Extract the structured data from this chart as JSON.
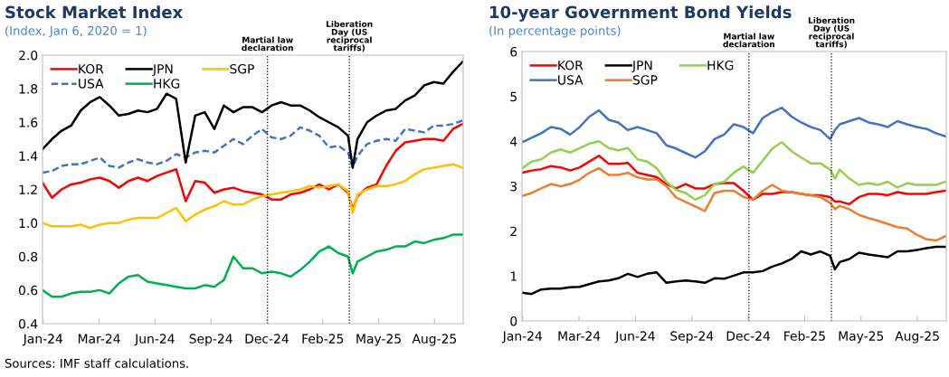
{
  "chart_data": [
    {
      "type": "line",
      "title": "Stock Market Index",
      "subtitle": "(Index, Jan 6, 2020 = 1)",
      "x": [
        "2024-01-08",
        "2024-01-22",
        "2024-02-05",
        "2024-02-19",
        "2024-03-04",
        "2024-03-18",
        "2024-04-01",
        "2024-04-15",
        "2024-04-29",
        "2024-05-13",
        "2024-05-27",
        "2024-06-10",
        "2024-06-24",
        "2024-07-08",
        "2024-07-22",
        "2024-08-05",
        "2024-08-19",
        "2024-09-02",
        "2024-09-16",
        "2024-09-30",
        "2024-10-14",
        "2024-10-28",
        "2024-11-11",
        "2024-11-25",
        "2024-12-09",
        "2024-12-23",
        "2025-01-06",
        "2025-01-20",
        "2025-02-03",
        "2025-02-17",
        "2025-03-03",
        "2025-03-17",
        "2025-03-31",
        "2025-04-07",
        "2025-04-14",
        "2025-04-28",
        "2025-05-12",
        "2025-05-26",
        "2025-06-09",
        "2025-06-23",
        "2025-07-07",
        "2025-07-21",
        "2025-08-04",
        "2025-08-18",
        "2025-09-01",
        "2025-09-15"
      ],
      "series": [
        {
          "name": "KOR",
          "color": "#ff0000",
          "values": [
            1.24,
            1.15,
            1.2,
            1.23,
            1.24,
            1.26,
            1.27,
            1.25,
            1.21,
            1.25,
            1.27,
            1.25,
            1.28,
            1.3,
            1.32,
            1.13,
            1.25,
            1.24,
            1.18,
            1.2,
            1.21,
            1.19,
            1.18,
            1.17,
            1.14,
            1.14,
            1.17,
            1.18,
            1.2,
            1.23,
            1.2,
            1.23,
            1.18,
            1.08,
            1.16,
            1.21,
            1.23,
            1.34,
            1.43,
            1.48,
            1.49,
            1.5,
            1.5,
            1.49,
            1.56,
            1.59
          ]
        },
        {
          "name": "USA",
          "color": "#4472c4",
          "line_style": "dashed",
          "values": [
            1.3,
            1.31,
            1.34,
            1.35,
            1.35,
            1.37,
            1.39,
            1.34,
            1.33,
            1.36,
            1.38,
            1.36,
            1.35,
            1.37,
            1.41,
            1.39,
            1.42,
            1.43,
            1.42,
            1.46,
            1.5,
            1.47,
            1.52,
            1.56,
            1.51,
            1.5,
            1.52,
            1.57,
            1.55,
            1.52,
            1.45,
            1.46,
            1.42,
            1.33,
            1.4,
            1.47,
            1.49,
            1.5,
            1.49,
            1.56,
            1.55,
            1.54,
            1.58,
            1.58,
            1.59,
            1.61
          ]
        },
        {
          "name": "JPN",
          "color": "#000000",
          "values": [
            1.44,
            1.5,
            1.55,
            1.58,
            1.67,
            1.72,
            1.75,
            1.7,
            1.64,
            1.65,
            1.67,
            1.66,
            1.68,
            1.77,
            1.74,
            1.36,
            1.64,
            1.66,
            1.56,
            1.7,
            1.66,
            1.69,
            1.69,
            1.66,
            1.7,
            1.72,
            1.7,
            1.7,
            1.67,
            1.63,
            1.6,
            1.57,
            1.52,
            1.33,
            1.5,
            1.6,
            1.64,
            1.67,
            1.68,
            1.73,
            1.76,
            1.82,
            1.84,
            1.83,
            1.9,
            1.96
          ]
        },
        {
          "name": "HKG",
          "color": "#00b050",
          "values": [
            0.6,
            0.56,
            0.56,
            0.58,
            0.59,
            0.59,
            0.6,
            0.58,
            0.64,
            0.68,
            0.69,
            0.65,
            0.64,
            0.63,
            0.62,
            0.61,
            0.61,
            0.63,
            0.62,
            0.66,
            0.8,
            0.73,
            0.73,
            0.7,
            0.71,
            0.7,
            0.68,
            0.72,
            0.77,
            0.83,
            0.86,
            0.82,
            0.8,
            0.7,
            0.77,
            0.8,
            0.83,
            0.84,
            0.86,
            0.86,
            0.89,
            0.88,
            0.9,
            0.91,
            0.93,
            0.93
          ]
        },
        {
          "name": "SGP",
          "color": "#ffc000",
          "values": [
            1.0,
            0.98,
            0.98,
            0.98,
            0.99,
            0.97,
            0.99,
            1.0,
            1.0,
            1.02,
            1.03,
            1.03,
            1.03,
            1.06,
            1.09,
            1.01,
            1.05,
            1.08,
            1.1,
            1.13,
            1.11,
            1.11,
            1.14,
            1.16,
            1.17,
            1.18,
            1.19,
            1.2,
            1.22,
            1.21,
            1.22,
            1.23,
            1.19,
            1.06,
            1.17,
            1.2,
            1.22,
            1.22,
            1.23,
            1.25,
            1.29,
            1.32,
            1.33,
            1.34,
            1.35,
            1.33
          ]
        }
      ],
      "xlim": [
        "2024-01-08",
        "2025-09-16"
      ],
      "xticks": [
        {
          "value": "2024-01-09",
          "label": "Jan-24"
        },
        {
          "value": "2024-03-31",
          "label": "Mar-24"
        },
        {
          "value": "2024-06-21",
          "label": "Jun-24"
        },
        {
          "value": "2024-09-11",
          "label": "Sep-24"
        },
        {
          "value": "2024-12-02",
          "label": "Dec-24"
        },
        {
          "value": "2025-02-22",
          "label": "Feb-25"
        },
        {
          "value": "2025-05-15",
          "label": "May-25"
        },
        {
          "value": "2025-08-05",
          "label": "Aug-25"
        }
      ],
      "ylim": [
        0.4,
        2.0
      ],
      "yticks": [
        0.4,
        0.6,
        0.8,
        {
          "value": 1,
          "label": "1.0"
        },
        1.2,
        1.4,
        1.6,
        1.8,
        {
          "value": 2,
          "label": "2.0"
        }
      ],
      "ref_lines": [
        {
          "axis": "x",
          "value": "2024-12-03",
          "label": "Martial law\ndeclaration",
          "color": "#000000",
          "line_style": "dotted"
        },
        {
          "axis": "x",
          "value": "2025-04-02",
          "label": "Liberation\nDay (US\nreciprocal\ntariffs)",
          "color": "#000000",
          "line_style": "dotted"
        }
      ],
      "legend": "top left",
      "annotations": [
        "Sources: IMF staff calculations."
      ]
    },
    {
      "type": "line",
      "title": "10-year Government Bond Yields",
      "subtitle": "(In percentage points)",
      "x": [
        "2024-01-08",
        "2024-01-22",
        "2024-02-05",
        "2024-02-19",
        "2024-03-04",
        "2024-03-18",
        "2024-04-01",
        "2024-04-15",
        "2024-04-29",
        "2024-05-13",
        "2024-05-27",
        "2024-06-10",
        "2024-06-24",
        "2024-07-08",
        "2024-07-22",
        "2024-08-05",
        "2024-08-19",
        "2024-09-02",
        "2024-09-16",
        "2024-09-30",
        "2024-10-14",
        "2024-10-28",
        "2024-11-11",
        "2024-11-25",
        "2024-12-09",
        "2024-12-23",
        "2025-01-06",
        "2025-01-20",
        "2025-02-03",
        "2025-02-17",
        "2025-03-03",
        "2025-03-17",
        "2025-03-31",
        "2025-04-07",
        "2025-04-14",
        "2025-04-28",
        "2025-05-12",
        "2025-05-26",
        "2025-06-09",
        "2025-06-23",
        "2025-07-07",
        "2025-07-21",
        "2025-08-04",
        "2025-08-18",
        "2025-09-01",
        "2025-09-15"
      ],
      "series": [
        {
          "name": "KOR",
          "color": "#ff0000",
          "values": [
            3.3,
            3.35,
            3.38,
            3.45,
            3.42,
            3.35,
            3.42,
            3.55,
            3.68,
            3.5,
            3.5,
            3.52,
            3.3,
            3.25,
            3.2,
            3.05,
            2.95,
            3.05,
            2.95,
            2.95,
            3.05,
            3.07,
            3.07,
            2.9,
            2.7,
            2.83,
            2.83,
            2.87,
            2.87,
            2.83,
            2.8,
            2.8,
            2.76,
            2.66,
            2.66,
            2.6,
            2.76,
            2.83,
            2.83,
            2.8,
            2.87,
            2.83,
            2.83,
            2.83,
            2.87,
            2.9
          ]
        },
        {
          "name": "USA",
          "color": "#4472c4",
          "values": [
            3.98,
            4.08,
            4.18,
            4.32,
            4.28,
            4.15,
            4.32,
            4.55,
            4.69,
            4.48,
            4.42,
            4.25,
            4.32,
            4.25,
            4.18,
            3.91,
            3.84,
            3.74,
            3.64,
            3.78,
            4.05,
            4.15,
            4.38,
            4.32,
            4.18,
            4.52,
            4.65,
            4.75,
            4.55,
            4.42,
            4.32,
            4.25,
            4.05,
            4.25,
            4.38,
            4.45,
            4.52,
            4.42,
            4.38,
            4.32,
            4.45,
            4.38,
            4.32,
            4.28,
            4.18,
            4.11
          ]
        },
        {
          "name": "JPN",
          "color": "#000000",
          "values": [
            0.63,
            0.6,
            0.7,
            0.72,
            0.72,
            0.75,
            0.76,
            0.82,
            0.88,
            0.9,
            0.95,
            1.05,
            0.98,
            1.05,
            1.08,
            0.85,
            0.88,
            0.9,
            0.88,
            0.85,
            0.95,
            0.94,
            1.01,
            1.08,
            1.08,
            1.11,
            1.21,
            1.28,
            1.38,
            1.55,
            1.48,
            1.55,
            1.45,
            1.15,
            1.31,
            1.38,
            1.52,
            1.48,
            1.45,
            1.42,
            1.55,
            1.55,
            1.58,
            1.62,
            1.65,
            1.65
          ]
        },
        {
          "name": "SGP",
          "color": "#ed7d31",
          "values": [
            2.78,
            2.85,
            2.95,
            3.05,
            3.0,
            3.05,
            3.15,
            3.3,
            3.4,
            3.25,
            3.25,
            3.3,
            3.2,
            3.15,
            3.15,
            3.0,
            2.75,
            2.65,
            2.55,
            2.45,
            2.85,
            2.9,
            2.9,
            2.76,
            2.7,
            2.9,
            3.03,
            2.9,
            2.87,
            2.83,
            2.8,
            2.76,
            2.63,
            2.49,
            2.56,
            2.49,
            2.36,
            2.29,
            2.23,
            2.16,
            2.09,
            2.06,
            1.92,
            1.82,
            1.79,
            1.89
          ]
        },
        {
          "name": "HKG",
          "color": "#92d050",
          "values": [
            3.4,
            3.55,
            3.6,
            3.75,
            3.82,
            3.75,
            3.85,
            3.95,
            4.0,
            3.85,
            3.8,
            3.85,
            3.6,
            3.55,
            3.4,
            3.1,
            2.92,
            2.85,
            2.7,
            2.8,
            3.05,
            3.1,
            3.3,
            3.44,
            3.3,
            3.57,
            3.84,
            3.98,
            3.78,
            3.64,
            3.51,
            3.51,
            3.37,
            3.17,
            3.37,
            3.17,
            3.03,
            3.07,
            3.03,
            3.1,
            2.97,
            3.07,
            3.03,
            3.03,
            3.03,
            3.1
          ]
        }
      ],
      "xlim": [
        "2024-01-08",
        "2025-09-16"
      ],
      "xticks": [
        {
          "value": "2024-01-09",
          "label": "Jan-24"
        },
        {
          "value": "2024-03-31",
          "label": "Mar-24"
        },
        {
          "value": "2024-06-21",
          "label": "Jun-24"
        },
        {
          "value": "2024-09-11",
          "label": "Sep-24"
        },
        {
          "value": "2024-12-02",
          "label": "Dec-24"
        },
        {
          "value": "2025-02-22",
          "label": "Feb-25"
        },
        {
          "value": "2025-05-15",
          "label": "May-25"
        },
        {
          "value": "2025-08-05",
          "label": "Aug-25"
        }
      ],
      "ylim": [
        0,
        6
      ],
      "yticks": [
        0,
        1,
        2,
        3,
        4,
        5,
        6
      ],
      "ref_lines": [
        {
          "axis": "x",
          "value": "2024-12-03",
          "label": "Martial law\ndeclaration",
          "color": "#000000",
          "line_style": "dotted"
        },
        {
          "axis": "x",
          "value": "2025-04-02",
          "label": "Liberation\nDay (US\nreciprocal\ntariffs)",
          "color": "#000000",
          "line_style": "dotted"
        }
      ],
      "legend": "top left"
    }
  ]
}
